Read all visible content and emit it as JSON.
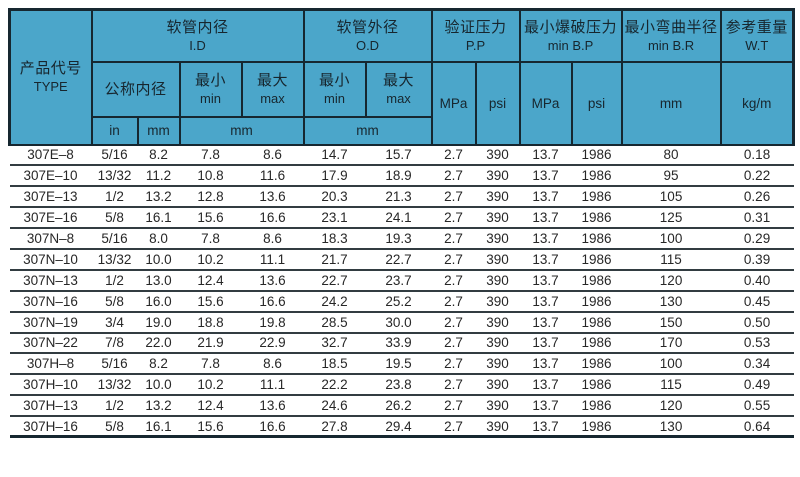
{
  "colors": {
    "header_bg": "#4ba6ca",
    "line": "#162730",
    "header_text": "#17262e",
    "row_line": "#323c41",
    "data_text": "#272727",
    "page_bg": "#ffffff"
  },
  "table": {
    "headers": {
      "type": {
        "zh": "产品代号",
        "en": "TYPE"
      },
      "id": {
        "zh": "软管内径",
        "en": "I.D"
      },
      "od": {
        "zh": "软管外径",
        "en": "O.D"
      },
      "pp": {
        "zh": "验证压力",
        "en": "P.P"
      },
      "bp": {
        "zh": "最小爆破压力",
        "en": "min B.P"
      },
      "br": {
        "zh": "最小弯曲半径",
        "en": "min B.R"
      },
      "wt": {
        "zh": "参考重量",
        "en": "W.T"
      },
      "nominal_id": {
        "zh": "公称内径"
      },
      "min": {
        "zh": "最小",
        "en": "min"
      },
      "max": {
        "zh": "最大",
        "en": "max"
      },
      "units": {
        "inch": "in",
        "mm": "mm",
        "mpa": "MPa",
        "psi": "psi",
        "kgm": "kg/m"
      }
    },
    "columns": [
      "type",
      "nominal_in",
      "nominal_mm",
      "id_min_mm",
      "id_max_mm",
      "od_min_mm",
      "od_max_mm",
      "pp_mpa",
      "pp_psi",
      "bp_mpa",
      "bp_psi",
      "br_mm",
      "wt_kgm"
    ],
    "rows": [
      [
        "307E–8",
        "5/16",
        "8.2",
        "7.8",
        "8.6",
        "14.7",
        "15.7",
        "2.7",
        "390",
        "13.7",
        "1986",
        "80",
        "0.18"
      ],
      [
        "307E–10",
        "13/32",
        "11.2",
        "10.8",
        "11.6",
        "17.9",
        "18.9",
        "2.7",
        "390",
        "13.7",
        "1986",
        "95",
        "0.22"
      ],
      [
        "307E–13",
        "1/2",
        "13.2",
        "12.8",
        "13.6",
        "20.3",
        "21.3",
        "2.7",
        "390",
        "13.7",
        "1986",
        "105",
        "0.26"
      ],
      [
        "307E–16",
        "5/8",
        "16.1",
        "15.6",
        "16.6",
        "23.1",
        "24.1",
        "2.7",
        "390",
        "13.7",
        "1986",
        "125",
        "0.31"
      ],
      [
        "307N–8",
        "5/16",
        "8.0",
        "7.8",
        "8.6",
        "18.3",
        "19.3",
        "2.7",
        "390",
        "13.7",
        "1986",
        "100",
        "0.29"
      ],
      [
        "307N–10",
        "13/32",
        "10.0",
        "10.2",
        "11.1",
        "21.7",
        "22.7",
        "2.7",
        "390",
        "13.7",
        "1986",
        "115",
        "0.39"
      ],
      [
        "307N–13",
        "1/2",
        "13.0",
        "12.4",
        "13.6",
        "22.7",
        "23.7",
        "2.7",
        "390",
        "13.7",
        "1986",
        "120",
        "0.40"
      ],
      [
        "307N–16",
        "5/8",
        "16.0",
        "15.6",
        "16.6",
        "24.2",
        "25.2",
        "2.7",
        "390",
        "13.7",
        "1986",
        "130",
        "0.45"
      ],
      [
        "307N–19",
        "3/4",
        "19.0",
        "18.8",
        "19.8",
        "28.5",
        "30.0",
        "2.7",
        "390",
        "13.7",
        "1986",
        "150",
        "0.50"
      ],
      [
        "307N–22",
        "7/8",
        "22.0",
        "21.9",
        "22.9",
        "32.7",
        "33.9",
        "2.7",
        "390",
        "13.7",
        "1986",
        "170",
        "0.53"
      ],
      [
        "307H–8",
        "5/16",
        "8.2",
        "7.8",
        "8.6",
        "18.5",
        "19.5",
        "2.7",
        "390",
        "13.7",
        "1986",
        "100",
        "0.34"
      ],
      [
        "307H–10",
        "13/32",
        "10.0",
        "10.2",
        "11.1",
        "22.2",
        "23.8",
        "2.7",
        "390",
        "13.7",
        "1986",
        "115",
        "0.49"
      ],
      [
        "307H–13",
        "1/2",
        "13.2",
        "12.4",
        "13.6",
        "24.6",
        "26.2",
        "2.7",
        "390",
        "13.7",
        "1986",
        "120",
        "0.55"
      ],
      [
        "307H–16",
        "5/8",
        "16.1",
        "15.6",
        "16.6",
        "27.8",
        "29.4",
        "2.7",
        "390",
        "13.7",
        "1986",
        "130",
        "0.64"
      ]
    ]
  }
}
